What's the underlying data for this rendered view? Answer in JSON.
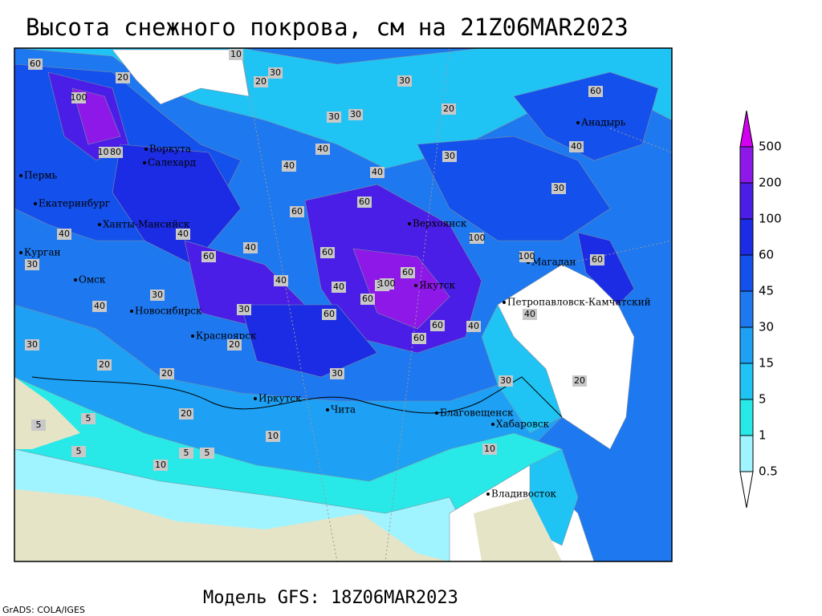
{
  "title": "Высота снежного покрова, см на 21Z06MAR2023",
  "footer": "Модель GFS: 18Z06MAR2023",
  "credit": "GrADS: COLA/IGES",
  "colorbar": {
    "levels": [
      0.5,
      1,
      5,
      15,
      30,
      45,
      60,
      100,
      200,
      500
    ],
    "colors": [
      "#ffffff",
      "#a0f4ff",
      "#28e8e8",
      "#20c4f4",
      "#1ea0f4",
      "#1e78f0",
      "#1450ec",
      "#1c2ce4",
      "#4a1ee6",
      "#8e18e8",
      "#d200ee"
    ]
  },
  "cities": [
    "Воркута",
    "Салехард",
    "Пермь",
    "Екатеринбург",
    "Ханты-Мансийск",
    "Курган",
    "Омск",
    "Новосибирск",
    "Красноярск",
    "Иркутск",
    "Чита",
    "Благовещенск",
    "Хабаровск",
    "Владивосток",
    "Якутск",
    "Верхоянск",
    "Магадан",
    "Анадырь",
    "Петропавловск-Камчатский"
  ],
  "map_labels": [
    10,
    30,
    20,
    30,
    20,
    30,
    30,
    20,
    100,
    60,
    100,
    40,
    40,
    60,
    60,
    40,
    60,
    40,
    60,
    40,
    40,
    30,
    60,
    100,
    60,
    60,
    60,
    100,
    100,
    40,
    60,
    30,
    40,
    30,
    30,
    40,
    30,
    40,
    30,
    20,
    20,
    30,
    20,
    5,
    5,
    10,
    10,
    5,
    5,
    20,
    10,
    5,
    30,
    20,
    40,
    30,
    40,
    60,
    60,
    80
  ]
}
